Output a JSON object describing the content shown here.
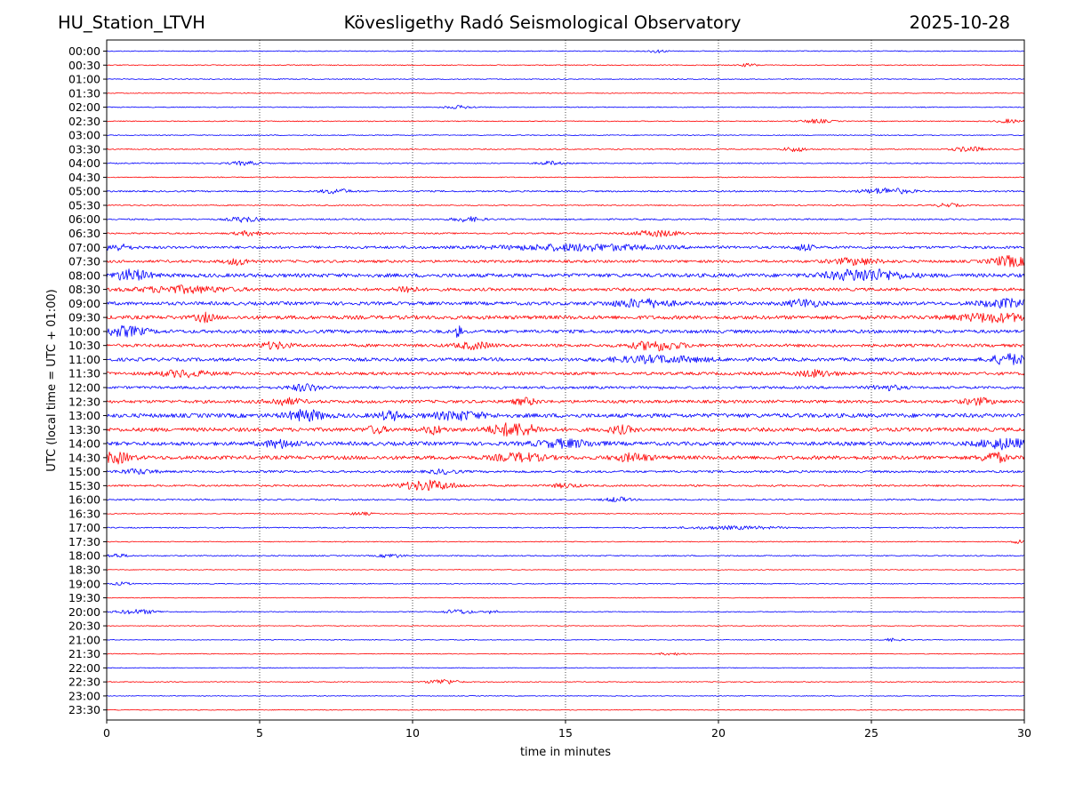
{
  "header": {
    "station": "HU_Station_LTVH",
    "observatory": "Kövesligethy Radó Seismological Observatory",
    "date": "2025-10-28"
  },
  "chart_data": {
    "type": "line",
    "title": "Kövesligethy Radó Seismological Observatory",
    "xlabel": "time in minutes",
    "ylabel": "UTC (local time = UTC + 01:00)",
    "xlim": [
      0,
      30
    ],
    "x_ticks": [
      "0",
      "5",
      "10",
      "15",
      "20",
      "25",
      "30"
    ],
    "x_tick_values": [
      0,
      5,
      10,
      15,
      20,
      25,
      30
    ],
    "grid": "vertical dotted lines at x ticks",
    "colors": [
      "#0000ff",
      "#ff0000"
    ],
    "series": [
      {
        "name": "00:00",
        "color": "#0000ff",
        "amplitude": 0.12,
        "bursts": [
          {
            "t": 18.0,
            "w": 0.3,
            "a": 0.4
          }
        ]
      },
      {
        "name": "00:30",
        "color": "#ff0000",
        "amplitude": 0.12,
        "bursts": [
          {
            "t": 21.0,
            "w": 0.3,
            "a": 0.4
          }
        ]
      },
      {
        "name": "01:00",
        "color": "#0000ff",
        "amplitude": 0.12,
        "bursts": []
      },
      {
        "name": "01:30",
        "color": "#ff0000",
        "amplitude": 0.1,
        "bursts": []
      },
      {
        "name": "02:00",
        "color": "#0000ff",
        "amplitude": 0.12,
        "bursts": [
          {
            "t": 11.5,
            "w": 0.5,
            "a": 0.4
          }
        ]
      },
      {
        "name": "02:30",
        "color": "#ff0000",
        "amplitude": 0.12,
        "bursts": [
          {
            "t": 23.2,
            "w": 0.5,
            "a": 0.5
          },
          {
            "t": 29.5,
            "w": 0.4,
            "a": 0.5
          }
        ]
      },
      {
        "name": "03:00",
        "color": "#0000ff",
        "amplitude": 0.12,
        "bursts": []
      },
      {
        "name": "03:30",
        "color": "#ff0000",
        "amplitude": 0.15,
        "bursts": [
          {
            "t": 22.5,
            "w": 0.4,
            "a": 0.6
          },
          {
            "t": 28.2,
            "w": 0.5,
            "a": 0.7
          }
        ]
      },
      {
        "name": "04:00",
        "color": "#0000ff",
        "amplitude": 0.15,
        "bursts": [
          {
            "t": 4.5,
            "w": 0.5,
            "a": 0.5
          },
          {
            "t": 14.5,
            "w": 0.4,
            "a": 0.5
          }
        ]
      },
      {
        "name": "04:30",
        "color": "#ff0000",
        "amplitude": 0.12,
        "bursts": []
      },
      {
        "name": "05:00",
        "color": "#0000ff",
        "amplitude": 0.2,
        "bursts": [
          {
            "t": 7.5,
            "w": 0.5,
            "a": 0.6
          },
          {
            "t": 25.5,
            "w": 0.8,
            "a": 0.8
          }
        ]
      },
      {
        "name": "05:30",
        "color": "#ff0000",
        "amplitude": 0.15,
        "bursts": [
          {
            "t": 27.5,
            "w": 0.4,
            "a": 0.5
          }
        ]
      },
      {
        "name": "06:00",
        "color": "#0000ff",
        "amplitude": 0.2,
        "bursts": [
          {
            "t": 4.5,
            "w": 0.5,
            "a": 0.7
          },
          {
            "t": 11.8,
            "w": 0.5,
            "a": 0.6
          }
        ]
      },
      {
        "name": "06:30",
        "color": "#ff0000",
        "amplitude": 0.2,
        "bursts": [
          {
            "t": 4.7,
            "w": 0.5,
            "a": 0.6
          },
          {
            "t": 18.0,
            "w": 0.8,
            "a": 0.8
          }
        ]
      },
      {
        "name": "07:00",
        "color": "#0000ff",
        "amplitude": 0.35,
        "bursts": [
          {
            "t": 0.3,
            "w": 0.5,
            "a": 0.8
          },
          {
            "t": 15.5,
            "w": 2.5,
            "a": 0.8
          },
          {
            "t": 22.8,
            "w": 0.3,
            "a": 0.8
          }
        ]
      },
      {
        "name": "07:30",
        "color": "#ff0000",
        "amplitude": 0.35,
        "bursts": [
          {
            "t": 4.3,
            "w": 0.4,
            "a": 0.8
          },
          {
            "t": 24.5,
            "w": 0.8,
            "a": 0.8
          },
          {
            "t": 29.5,
            "w": 0.6,
            "a": 1.3
          }
        ]
      },
      {
        "name": "08:00",
        "color": "#0000ff",
        "amplitude": 0.5,
        "bursts": [
          {
            "t": 0.8,
            "w": 0.6,
            "a": 1.3
          },
          {
            "t": 24.8,
            "w": 1.2,
            "a": 1.5
          }
        ]
      },
      {
        "name": "08:30",
        "color": "#ff0000",
        "amplitude": 0.4,
        "bursts": [
          {
            "t": 9.8,
            "w": 0.3,
            "a": 1.0
          },
          {
            "t": 2.5,
            "w": 1.5,
            "a": 0.8
          }
        ]
      },
      {
        "name": "09:00",
        "color": "#0000ff",
        "amplitude": 0.45,
        "bursts": [
          {
            "t": 17.5,
            "w": 1.0,
            "a": 1.0
          },
          {
            "t": 22.8,
            "w": 0.5,
            "a": 1.0
          },
          {
            "t": 29.5,
            "w": 1.0,
            "a": 1.0
          }
        ]
      },
      {
        "name": "09:30",
        "color": "#ff0000",
        "amplitude": 0.5,
        "bursts": [
          {
            "t": 3.2,
            "w": 0.3,
            "a": 1.0
          },
          {
            "t": 29.0,
            "w": 1.2,
            "a": 1.0
          }
        ]
      },
      {
        "name": "10:00",
        "color": "#0000ff",
        "amplitude": 0.45,
        "bursts": [
          {
            "t": 0.6,
            "w": 0.7,
            "a": 1.2
          },
          {
            "t": 11.5,
            "w": 0.08,
            "a": 2.0
          }
        ]
      },
      {
        "name": "10:30",
        "color": "#ff0000",
        "amplitude": 0.4,
        "bursts": [
          {
            "t": 5.5,
            "w": 0.5,
            "a": 0.8
          },
          {
            "t": 12.0,
            "w": 0.6,
            "a": 0.8
          },
          {
            "t": 18.0,
            "w": 0.8,
            "a": 1.2
          }
        ]
      },
      {
        "name": "11:00",
        "color": "#0000ff",
        "amplitude": 0.45,
        "bursts": [
          {
            "t": 18.0,
            "w": 1.5,
            "a": 0.8
          },
          {
            "t": 29.5,
            "w": 0.6,
            "a": 1.3
          }
        ]
      },
      {
        "name": "11:30",
        "color": "#ff0000",
        "amplitude": 0.4,
        "bursts": [
          {
            "t": 2.5,
            "w": 0.8,
            "a": 0.8
          },
          {
            "t": 23.2,
            "w": 0.6,
            "a": 0.8
          }
        ]
      },
      {
        "name": "12:00",
        "color": "#0000ff",
        "amplitude": 0.35,
        "bursts": [
          {
            "t": 6.5,
            "w": 0.5,
            "a": 0.9
          },
          {
            "t": 25.5,
            "w": 0.5,
            "a": 0.6
          }
        ]
      },
      {
        "name": "12:30",
        "color": "#ff0000",
        "amplitude": 0.4,
        "bursts": [
          {
            "t": 5.8,
            "w": 0.6,
            "a": 0.8
          },
          {
            "t": 13.7,
            "w": 0.4,
            "a": 0.8
          },
          {
            "t": 28.5,
            "w": 0.5,
            "a": 0.8
          }
        ]
      },
      {
        "name": "13:00",
        "color": "#0000ff",
        "amplitude": 0.55,
        "bursts": [
          {
            "t": 6.5,
            "w": 0.6,
            "a": 1.3
          },
          {
            "t": 9.3,
            "w": 0.4,
            "a": 1.0
          },
          {
            "t": 11.5,
            "w": 0.8,
            "a": 1.0
          }
        ]
      },
      {
        "name": "13:30",
        "color": "#ff0000",
        "amplitude": 0.5,
        "bursts": [
          {
            "t": 8.8,
            "w": 0.3,
            "a": 0.9
          },
          {
            "t": 10.7,
            "w": 0.3,
            "a": 1.0
          },
          {
            "t": 13.3,
            "w": 0.8,
            "a": 1.6
          },
          {
            "t": 16.8,
            "w": 0.4,
            "a": 0.9
          }
        ]
      },
      {
        "name": "14:00",
        "color": "#0000ff",
        "amplitude": 0.5,
        "bursts": [
          {
            "t": 5.7,
            "w": 0.6,
            "a": 0.9
          },
          {
            "t": 15.0,
            "w": 1.0,
            "a": 0.9
          },
          {
            "t": 29.3,
            "w": 0.8,
            "a": 1.2
          }
        ]
      },
      {
        "name": "14:30",
        "color": "#ff0000",
        "amplitude": 0.5,
        "bursts": [
          {
            "t": 0.3,
            "w": 0.5,
            "a": 1.3
          },
          {
            "t": 13.5,
            "w": 0.8,
            "a": 1.0
          },
          {
            "t": 17.2,
            "w": 0.6,
            "a": 0.9
          },
          {
            "t": 29.0,
            "w": 0.4,
            "a": 1.3
          }
        ]
      },
      {
        "name": "15:00",
        "color": "#0000ff",
        "amplitude": 0.3,
        "bursts": [
          {
            "t": 1.0,
            "w": 0.6,
            "a": 0.6
          },
          {
            "t": 11.0,
            "w": 0.5,
            "a": 0.5
          }
        ]
      },
      {
        "name": "15:30",
        "color": "#ff0000",
        "amplitude": 0.25,
        "bursts": [
          {
            "t": 10.5,
            "w": 0.9,
            "a": 1.3
          },
          {
            "t": 15.0,
            "w": 0.5,
            "a": 0.5
          }
        ]
      },
      {
        "name": "16:00",
        "color": "#0000ff",
        "amplitude": 0.2,
        "bursts": [
          {
            "t": 16.7,
            "w": 0.4,
            "a": 0.6
          }
        ]
      },
      {
        "name": "16:30",
        "color": "#ff0000",
        "amplitude": 0.12,
        "bursts": [
          {
            "t": 8.3,
            "w": 0.4,
            "a": 0.4
          }
        ]
      },
      {
        "name": "17:00",
        "color": "#0000ff",
        "amplitude": 0.15,
        "bursts": [
          {
            "t": 20.5,
            "w": 1.5,
            "a": 0.4
          }
        ]
      },
      {
        "name": "17:30",
        "color": "#ff0000",
        "amplitude": 0.12,
        "bursts": [
          {
            "t": 29.8,
            "w": 0.2,
            "a": 0.5
          }
        ]
      },
      {
        "name": "18:00",
        "color": "#0000ff",
        "amplitude": 0.15,
        "bursts": [
          {
            "t": 0.3,
            "w": 0.4,
            "a": 0.5
          },
          {
            "t": 9.3,
            "w": 0.4,
            "a": 0.5
          }
        ]
      },
      {
        "name": "18:30",
        "color": "#ff0000",
        "amplitude": 0.1,
        "bursts": []
      },
      {
        "name": "19:00",
        "color": "#0000ff",
        "amplitude": 0.12,
        "bursts": [
          {
            "t": 0.5,
            "w": 0.3,
            "a": 0.4
          }
        ]
      },
      {
        "name": "19:30",
        "color": "#ff0000",
        "amplitude": 0.1,
        "bursts": []
      },
      {
        "name": "20:00",
        "color": "#0000ff",
        "amplitude": 0.12,
        "bursts": [
          {
            "t": 1.0,
            "w": 0.7,
            "a": 0.6
          },
          {
            "t": 11.5,
            "w": 0.5,
            "a": 0.6
          },
          {
            "t": 12.6,
            "w": 0.2,
            "a": 0.5
          }
        ]
      },
      {
        "name": "20:30",
        "color": "#ff0000",
        "amplitude": 0.1,
        "bursts": []
      },
      {
        "name": "21:00",
        "color": "#0000ff",
        "amplitude": 0.1,
        "bursts": [
          {
            "t": 25.7,
            "w": 0.3,
            "a": 0.4
          }
        ]
      },
      {
        "name": "21:30",
        "color": "#ff0000",
        "amplitude": 0.1,
        "bursts": [
          {
            "t": 18.5,
            "w": 0.5,
            "a": 0.3
          }
        ]
      },
      {
        "name": "22:00",
        "color": "#0000ff",
        "amplitude": 0.1,
        "bursts": []
      },
      {
        "name": "22:30",
        "color": "#ff0000",
        "amplitude": 0.12,
        "bursts": [
          {
            "t": 11.0,
            "w": 0.5,
            "a": 0.7
          }
        ]
      },
      {
        "name": "23:00",
        "color": "#0000ff",
        "amplitude": 0.1,
        "bursts": []
      },
      {
        "name": "23:30",
        "color": "#ff0000",
        "amplitude": 0.1,
        "bursts": []
      }
    ]
  }
}
